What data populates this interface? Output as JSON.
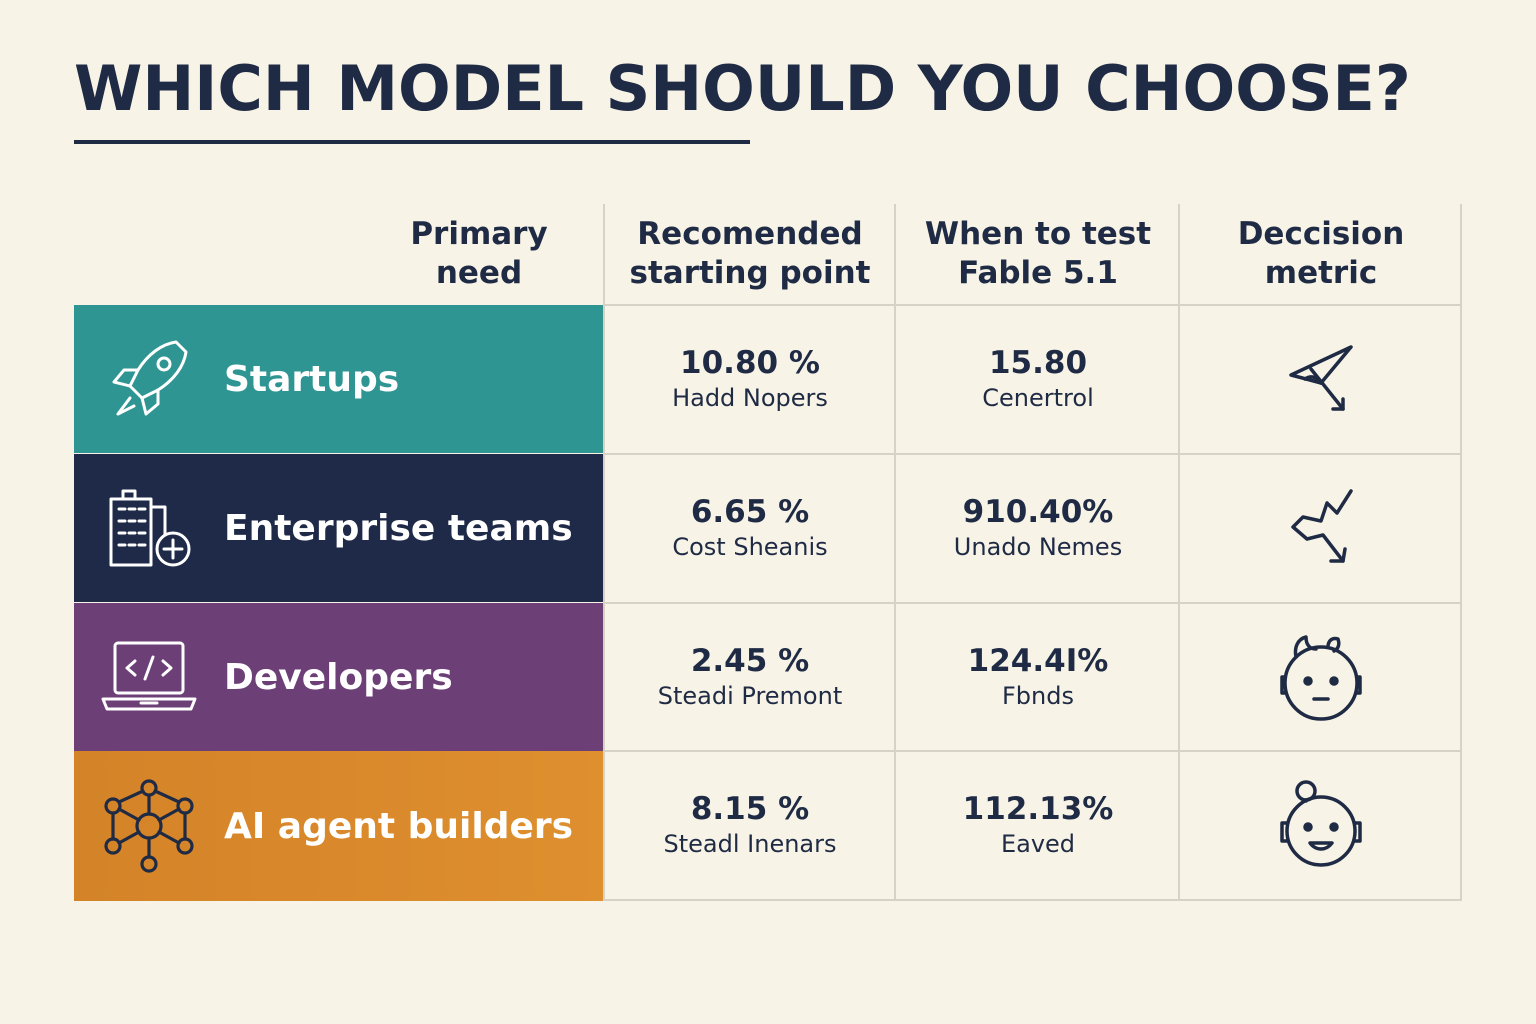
{
  "title": "WHICH MODEL SHOULD YOU CHOOSE?",
  "columns": [
    "Primary\nneed",
    "Recomended\nstarting point",
    "When to test\nFable 5.1",
    "Deccision\nmetric"
  ],
  "rows": [
    {
      "label": "Startups",
      "color": "#2e9593",
      "icon": "rocket-icon",
      "starting_value": "10.80 %",
      "starting_sub": "Hadd Nopers",
      "test_value": "15.80",
      "test_sub": "Cenertrol",
      "metric_icon": "triangle-arrow-icon"
    },
    {
      "label": "Enterprise teams",
      "color": "#1f2a48",
      "icon": "building-plus-icon",
      "starting_value": "6.65 %",
      "starting_sub": "Cost Sheanis",
      "test_value": "910.40%",
      "test_sub": "Unado Nemes",
      "metric_icon": "zigzag-arrow-icon"
    },
    {
      "label": "Developers",
      "color": "#6c3f77",
      "icon": "laptop-code-icon",
      "starting_value": "2.45 %",
      "starting_sub": "Steadi Premont",
      "test_value": "124.4I%",
      "test_sub": "Fbnds",
      "metric_icon": "robot-face-icon"
    },
    {
      "label": "AI agent builders",
      "color": "#d98a2c",
      "icon": "network-icon",
      "starting_value": "8.15 %",
      "starting_sub": "Steadl Inenars",
      "test_value": "112.13%",
      "test_sub": "Eaved",
      "metric_icon": "robot-head-icon"
    }
  ]
}
